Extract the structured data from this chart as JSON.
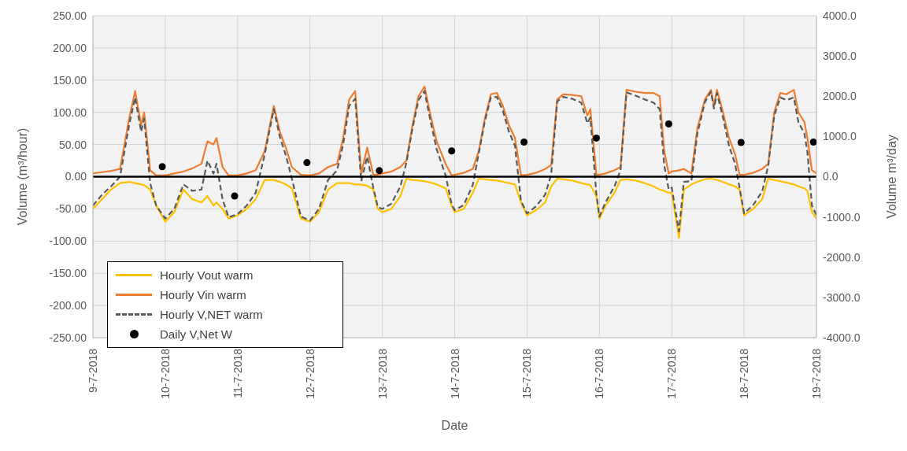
{
  "chart_data": {
    "type": "line",
    "xlabel": "Date",
    "ylabel": "Volume (m³/hour)",
    "y2label": "Volume m³/day",
    "x": [
      "2018-07-09T00:00",
      "2018-07-09T03:00",
      "2018-07-09T06:00",
      "2018-07-09T09:00",
      "2018-07-09T12:00",
      "2018-07-09T14:00",
      "2018-07-09T16:00",
      "2018-07-09T17:00",
      "2018-07-09T19:00",
      "2018-07-09T21:00",
      "2018-07-10T00:00",
      "2018-07-10T03:00",
      "2018-07-10T06:00",
      "2018-07-10T09:00",
      "2018-07-10T12:00",
      "2018-07-10T14:00",
      "2018-07-10T16:00",
      "2018-07-10T17:00",
      "2018-07-10T19:00",
      "2018-07-10T21:00",
      "2018-07-11T00:00",
      "2018-07-11T03:00",
      "2018-07-11T06:00",
      "2018-07-11T09:00",
      "2018-07-11T12:00",
      "2018-07-11T14:00",
      "2018-07-11T16:00",
      "2018-07-11T18:00",
      "2018-07-11T21:00",
      "2018-07-12T00:00",
      "2018-07-12T03:00",
      "2018-07-12T06:00",
      "2018-07-12T09:00",
      "2018-07-12T11:00",
      "2018-07-12T13:00",
      "2018-07-12T15:00",
      "2018-07-12T17:00",
      "2018-07-12T19:00",
      "2018-07-12T21:00",
      "2018-07-12T22:30",
      "2018-07-13T00:00",
      "2018-07-13T03:00",
      "2018-07-13T06:00",
      "2018-07-13T08:00",
      "2018-07-13T10:00",
      "2018-07-13T12:00",
      "2018-07-13T14:00",
      "2018-07-13T16:00",
      "2018-07-13T18:00",
      "2018-07-13T21:00",
      "2018-07-13T23:00",
      "2018-07-14T00:00",
      "2018-07-14T03:00",
      "2018-07-14T06:00",
      "2018-07-14T08:00",
      "2018-07-14T10:00",
      "2018-07-14T12:00",
      "2018-07-14T14:00",
      "2018-07-14T16:00",
      "2018-07-14T18:00",
      "2018-07-14T20:00",
      "2018-07-14T22:00",
      "2018-07-15T00:00",
      "2018-07-15T03:00",
      "2018-07-15T06:00",
      "2018-07-15T08:00",
      "2018-07-15T10:00",
      "2018-07-15T12:00",
      "2018-07-15T15:00",
      "2018-07-15T18:00",
      "2018-07-15T20:00",
      "2018-07-15T21:00",
      "2018-07-15T23:00",
      "2018-07-16T00:00",
      "2018-07-16T02:00",
      "2018-07-16T05:00",
      "2018-07-16T07:00",
      "2018-07-16T09:00",
      "2018-07-16T12:00",
      "2018-07-16T15:00",
      "2018-07-16T18:00",
      "2018-07-16T20:00",
      "2018-07-16T21:30",
      "2018-07-16T23:00",
      "2018-07-17T00:00",
      "2018-07-17T02:24",
      "2018-07-17T04:00",
      "2018-07-17T06:30",
      "2018-07-17T08:30",
      "2018-07-17T11:00",
      "2018-07-17T13:00",
      "2018-07-17T14:00",
      "2018-07-17T15:00",
      "2018-07-17T17:00",
      "2018-07-17T19:00",
      "2018-07-17T21:00",
      "2018-07-17T22:30",
      "2018-07-18T00:00",
      "2018-07-18T03:00",
      "2018-07-18T06:00",
      "2018-07-18T08:00",
      "2018-07-18T10:00",
      "2018-07-18T12:00",
      "2018-07-18T14:00",
      "2018-07-18T16:30",
      "2018-07-18T18:00",
      "2018-07-18T20:00",
      "2018-07-18T21:00",
      "2018-07-18T22:30",
      "2018-07-19T00:00"
    ],
    "series": [
      {
        "name": "Hourly Vout warm",
        "color": "#ffc000",
        "values": [
          -50,
          -35,
          -20,
          -10,
          -8,
          -10,
          -12,
          -13,
          -20,
          -45,
          -70,
          -55,
          -20,
          -35,
          -40,
          -30,
          -45,
          -40,
          -50,
          -65,
          -60,
          -50,
          -35,
          -5,
          -5,
          -8,
          -12,
          -18,
          -65,
          -70,
          -55,
          -20,
          -10,
          -10,
          -10,
          -12,
          -12,
          -14,
          -20,
          -50,
          -55,
          -50,
          -30,
          -3,
          -5,
          -6,
          -7,
          -9,
          -12,
          -18,
          -45,
          -55,
          -50,
          -25,
          -3,
          -4,
          -5,
          -6,
          -8,
          -10,
          -12,
          -40,
          -60,
          -52,
          -40,
          -15,
          -3,
          -4,
          -6,
          -10,
          -12,
          -13,
          -30,
          -65,
          -45,
          -25,
          -5,
          -4,
          -6,
          -10,
          -15,
          -20,
          -22,
          -25,
          -25,
          -95,
          -20,
          -12,
          -8,
          -4,
          -3,
          -4,
          -5,
          -8,
          -12,
          -15,
          -20,
          -60,
          -50,
          -35,
          -3,
          -5,
          -7,
          -9,
          -12,
          -15,
          -18,
          -22,
          -55,
          -65
        ]
      },
      {
        "name": "Hourly Vin warm",
        "color": "#ed7d31",
        "values": [
          5,
          7,
          9,
          12,
          90,
          133,
          80,
          100,
          10,
          2,
          2,
          5,
          8,
          13,
          20,
          55,
          50,
          60,
          15,
          2,
          2,
          5,
          10,
          40,
          110,
          70,
          45,
          15,
          3,
          2,
          5,
          15,
          20,
          60,
          120,
          133,
          5,
          45,
          3,
          3,
          5,
          8,
          15,
          25,
          80,
          125,
          140,
          95,
          55,
          20,
          2,
          3,
          6,
          12,
          40,
          90,
          128,
          130,
          110,
          80,
          60,
          2,
          3,
          6,
          12,
          18,
          120,
          128,
          127,
          125,
          95,
          105,
          3,
          3,
          5,
          10,
          15,
          135,
          132,
          130,
          130,
          125,
          40,
          5,
          8,
          10,
          12,
          5,
          75,
          120,
          135,
          110,
          135,
          100,
          60,
          35,
          3,
          3,
          6,
          12,
          20,
          100,
          130,
          128,
          135,
          100,
          85,
          60,
          10,
          5
        ]
      },
      {
        "name": "Hourly V,NET warm",
        "color": "#595959",
        "line_style": "dashed",
        "values": [
          -45,
          -28,
          -15,
          0,
          80,
          123,
          70,
          90,
          -10,
          -45,
          -65,
          -50,
          -12,
          -22,
          -20,
          25,
          5,
          20,
          -35,
          -63,
          -58,
          -45,
          -25,
          35,
          105,
          62,
          33,
          -3,
          -62,
          -68,
          -50,
          -5,
          10,
          50,
          110,
          121,
          -7,
          31,
          -17,
          -47,
          -50,
          -42,
          -15,
          22,
          75,
          119,
          133,
          86,
          43,
          2,
          -43,
          -52,
          -44,
          -13,
          37,
          86,
          123,
          124,
          102,
          70,
          48,
          -38,
          -57,
          -46,
          -28,
          3,
          117,
          124,
          121,
          115,
          83,
          92,
          -27,
          -62,
          -40,
          -15,
          10,
          131,
          126,
          120,
          115,
          105,
          18,
          -20,
          -17,
          -85,
          -8,
          -7,
          67,
          116,
          132,
          106,
          130,
          92,
          48,
          20,
          -17,
          -57,
          -44,
          -23,
          17,
          95,
          123,
          119,
          123,
          85,
          67,
          38,
          -45,
          -60
        ]
      },
      {
        "name": "Daily V,Net W",
        "type": "scatter",
        "axis": "y2",
        "marker": "circle",
        "color": "#000000",
        "x": [
          "2018-07-09T23:00",
          "2018-07-10T23:00",
          "2018-07-11T23:00",
          "2018-07-12T23:00",
          "2018-07-13T23:00",
          "2018-07-14T23:00",
          "2018-07-15T23:00",
          "2018-07-16T23:00",
          "2018-07-17T23:00",
          "2018-07-18T23:00"
        ],
        "values": [
          250,
          -480,
          350,
          150,
          640,
          860,
          960,
          1310,
          850,
          860
        ]
      }
    ],
    "xlim": [
      "2018-07-09",
      "2018-07-19"
    ],
    "xticks": [
      {
        "value": "2018-07-09",
        "label": "9-7-2018"
      },
      {
        "value": "2018-07-10",
        "label": "10-7-2018"
      },
      {
        "value": "2018-07-11",
        "label": "11-7-2018"
      },
      {
        "value": "2018-07-12",
        "label": "12-7-2018"
      },
      {
        "value": "2018-07-13",
        "label": "13-7-2018"
      },
      {
        "value": "2018-07-14",
        "label": "14-7-2018"
      },
      {
        "value": "2018-07-15",
        "label": "15-7-2018"
      },
      {
        "value": "2018-07-16",
        "label": "16-7-2018"
      },
      {
        "value": "2018-07-17",
        "label": "17-7-2018"
      },
      {
        "value": "2018-07-18",
        "label": "18-7-2018"
      },
      {
        "value": "2018-07-19",
        "label": "19-7-2018"
      }
    ],
    "ylim": [
      -250,
      250
    ],
    "yticks": [
      {
        "value": -250,
        "label": "-250.00"
      },
      {
        "value": -200,
        "label": "-200.00"
      },
      {
        "value": -150,
        "label": "-150.00"
      },
      {
        "value": -100,
        "label": "-100.00"
      },
      {
        "value": -50,
        "label": "-50.00"
      },
      {
        "value": 0,
        "label": "0.00"
      },
      {
        "value": 50,
        "label": "50.00"
      },
      {
        "value": 100,
        "label": "100.00"
      },
      {
        "value": 150,
        "label": "150.00"
      },
      {
        "value": 200,
        "label": "200.00"
      },
      {
        "value": 250,
        "label": "250.00"
      }
    ],
    "y2lim": [
      -4000,
      4000
    ],
    "y2ticks": [
      {
        "value": -4000,
        "label": "-4000.0"
      },
      {
        "value": -3000,
        "label": "-3000.0"
      },
      {
        "value": -2000,
        "label": "-2000.0"
      },
      {
        "value": -1000,
        "label": "-1000.0"
      },
      {
        "value": 0,
        "label": "0.0"
      },
      {
        "value": 1000,
        "label": "1000.0"
      },
      {
        "value": 2000,
        "label": "2000.0"
      },
      {
        "value": 3000,
        "label": "3000.0"
      },
      {
        "value": 4000,
        "label": "4000.0"
      }
    ],
    "ref_lines": [
      {
        "axis": "y",
        "value": 0,
        "color": "#000000"
      }
    ],
    "grid": true,
    "legend": "bottom left",
    "marker": "none",
    "line_style": "solid"
  }
}
